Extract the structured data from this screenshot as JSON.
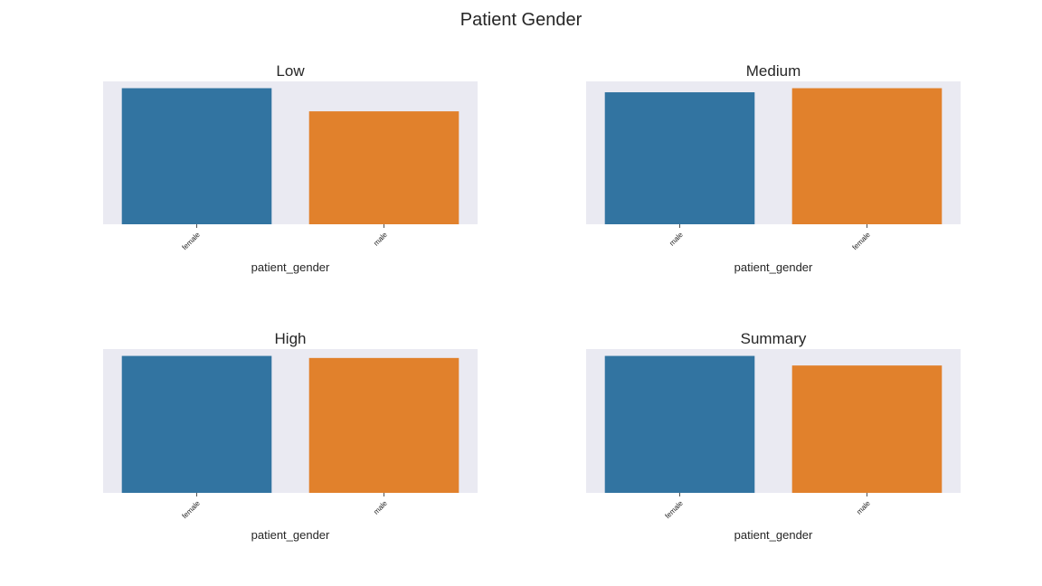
{
  "title": "Patient Gender",
  "colors": {
    "axes_background": "#eaeaf2",
    "series_blue": "#3274a1",
    "series_orange": "#e1812c",
    "tick_color": "#262626"
  },
  "chart_data": [
    {
      "type": "bar",
      "title": "Low",
      "xlabel": "patient_gender",
      "ylabel": "",
      "categories": [
        "female",
        "male"
      ],
      "values": [
        1.0,
        0.83
      ],
      "ylim": [
        0,
        1.05
      ],
      "y_axis_visible": false,
      "grid": false,
      "legend": "none"
    },
    {
      "type": "bar",
      "title": "Medium",
      "xlabel": "patient_gender",
      "ylabel": "",
      "categories": [
        "male",
        "female"
      ],
      "values": [
        0.97,
        1.0
      ],
      "ylim": [
        0,
        1.05
      ],
      "y_axis_visible": false,
      "grid": false,
      "legend": "none"
    },
    {
      "type": "bar",
      "title": "High",
      "xlabel": "patient_gender",
      "ylabel": "",
      "categories": [
        "female",
        "male"
      ],
      "values": [
        1.0,
        0.985
      ],
      "ylim": [
        0,
        1.05
      ],
      "y_axis_visible": false,
      "grid": false,
      "legend": "none"
    },
    {
      "type": "bar",
      "title": "Summary",
      "xlabel": "patient_gender",
      "ylabel": "",
      "categories": [
        "female",
        "male"
      ],
      "values": [
        1.0,
        0.93
      ],
      "ylim": [
        0,
        1.05
      ],
      "y_axis_visible": false,
      "grid": false,
      "legend": "none"
    }
  ]
}
